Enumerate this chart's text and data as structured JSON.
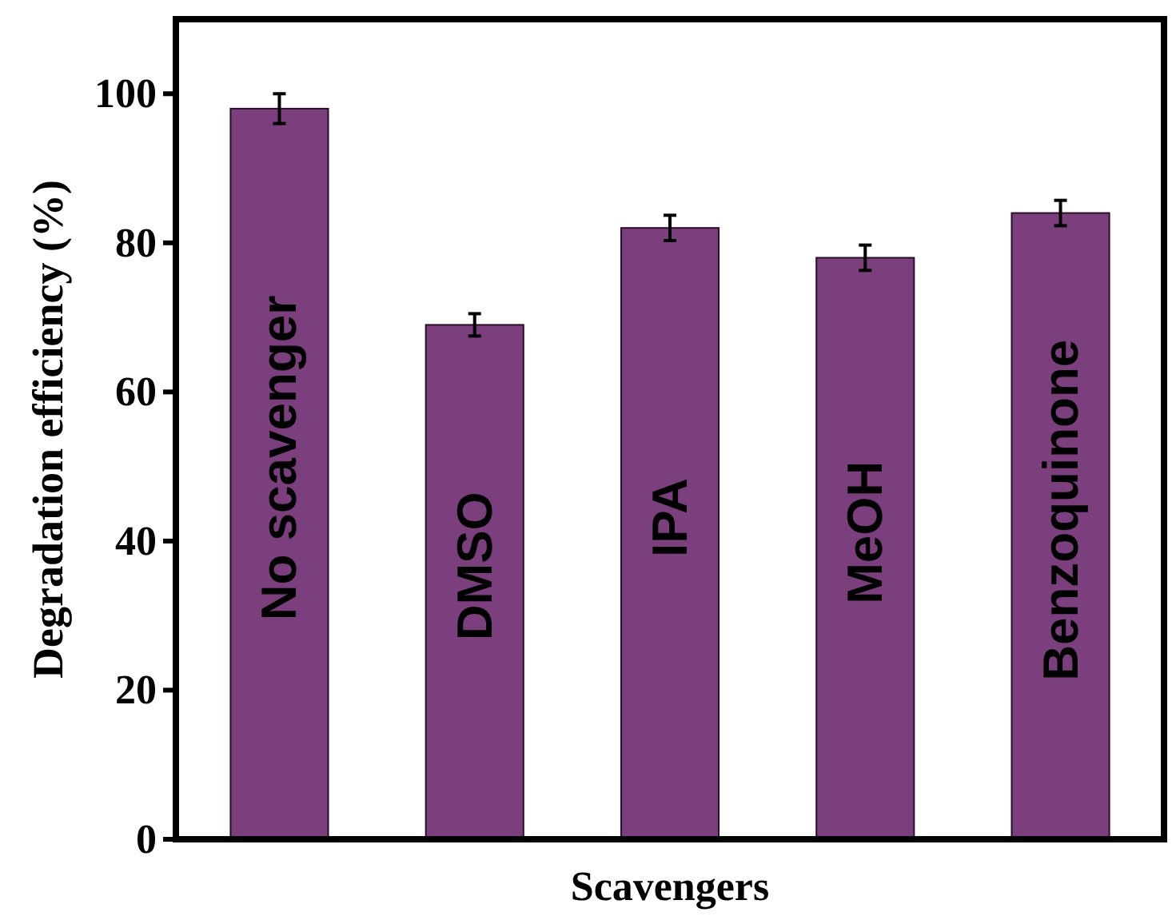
{
  "chart_data": {
    "type": "bar",
    "xlabel": "Scavengers",
    "ylabel": "Degradation efficiency (%)",
    "categories": [
      "No scavenger",
      "DMSO",
      "IPA",
      "MeOH",
      "Benzoquinone"
    ],
    "values": [
      98,
      69,
      82,
      78,
      84
    ],
    "errors": [
      2,
      1.5,
      1.7,
      1.7,
      1.7
    ],
    "color": "#7b3f7e",
    "ylim": [
      0,
      110
    ],
    "yticks": [
      0,
      20,
      40,
      60,
      80,
      100
    ],
    "grid": false
  }
}
